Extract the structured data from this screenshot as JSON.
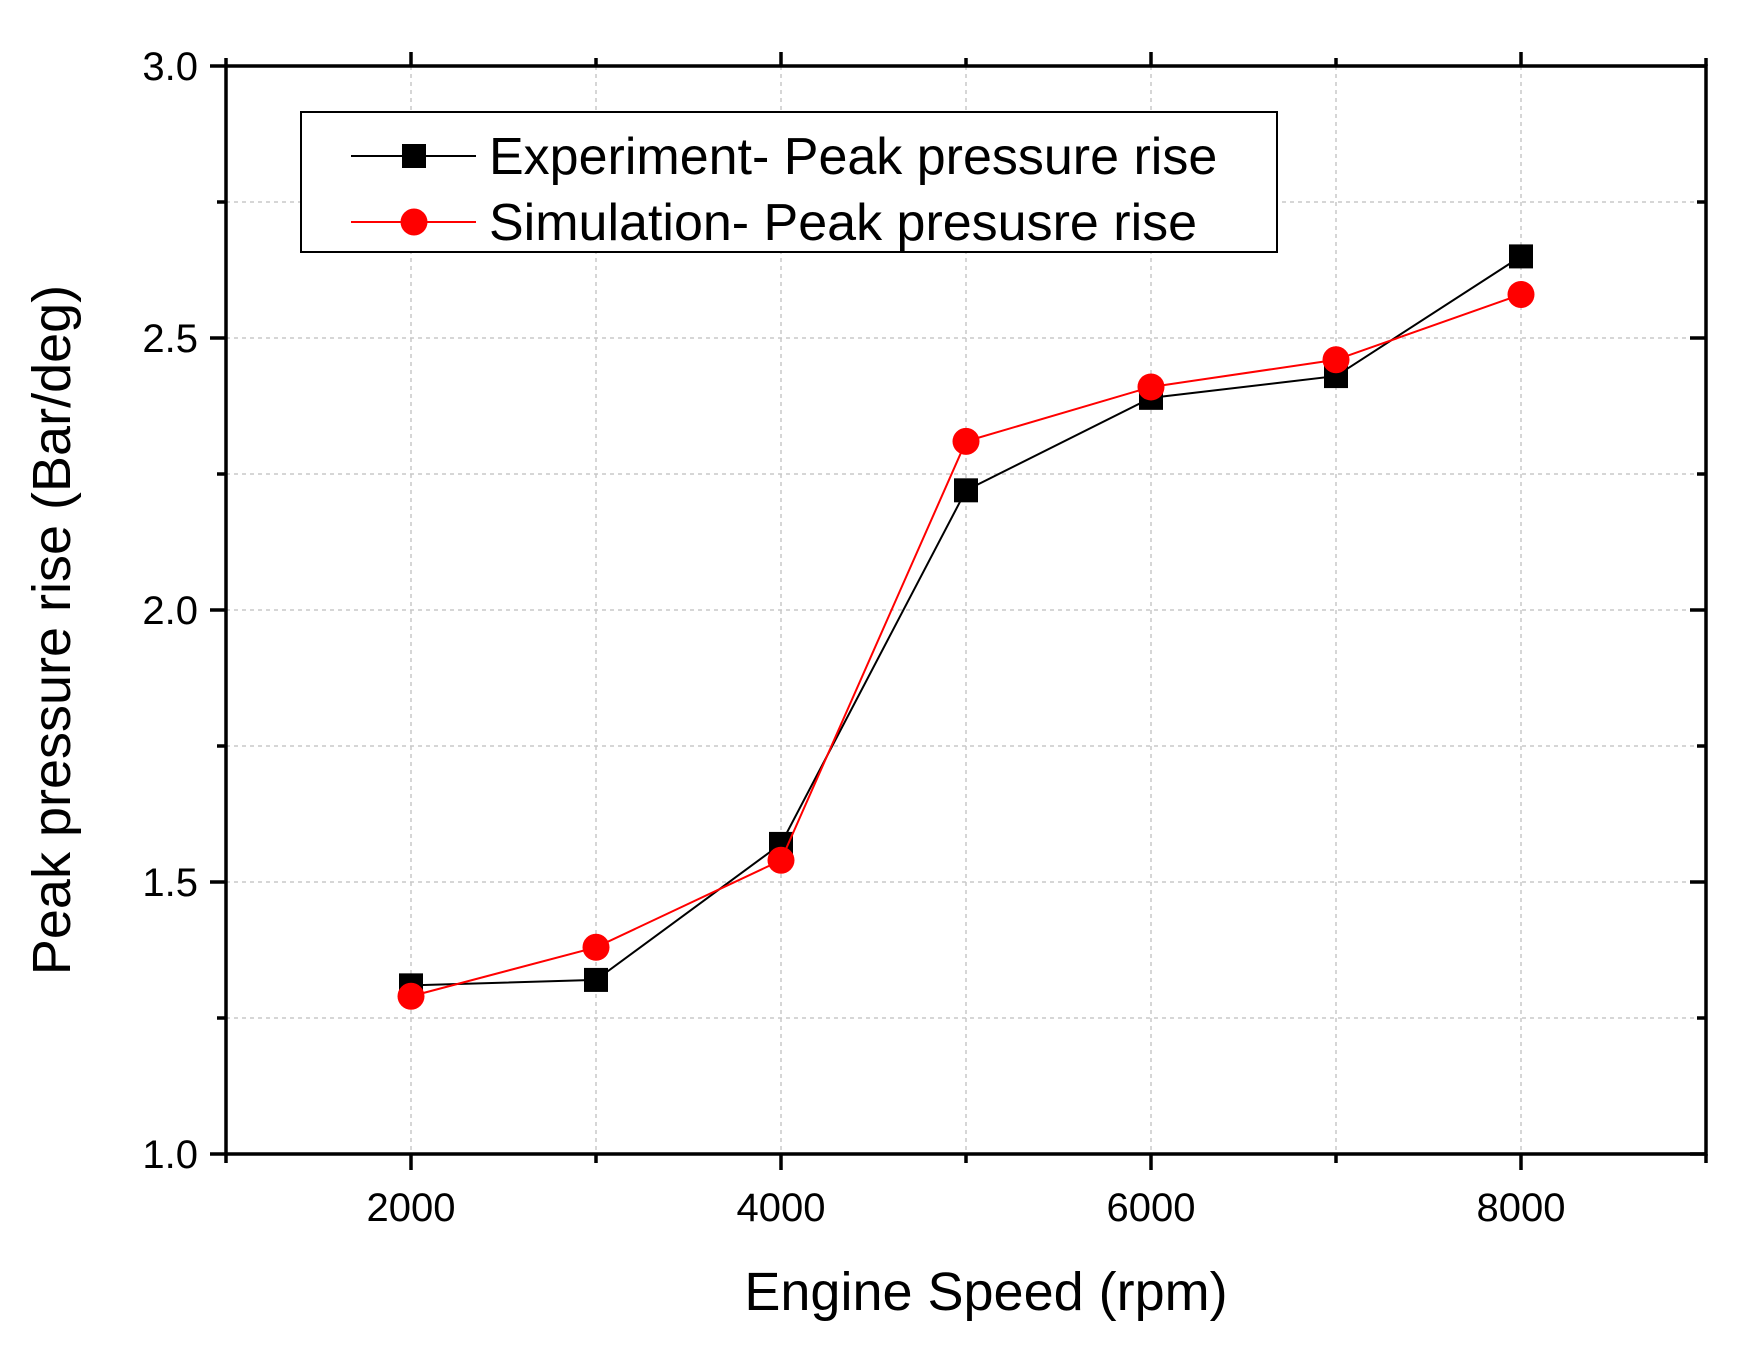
{
  "chart_data": {
    "type": "line",
    "title": "",
    "xlabel": "Engine Speed (rpm)",
    "ylabel": "Peak pressure rise (Bar/deg)",
    "xlim": [
      1000,
      9000
    ],
    "ylim": [
      1.0,
      3.0
    ],
    "x_ticks": [
      2000,
      4000,
      6000,
      8000
    ],
    "x_minor_ticks": [
      1000,
      3000,
      5000,
      7000,
      9000
    ],
    "y_ticks": [
      1.0,
      1.5,
      2.0,
      2.5,
      3.0
    ],
    "y_tick_labels": [
      "1.0",
      "1.5",
      "2.0",
      "2.5",
      "3.0"
    ],
    "y_minor_ticks": [
      1.25,
      1.75,
      2.25,
      2.75
    ],
    "x_grid": [
      2000,
      3000,
      4000,
      5000,
      6000,
      7000,
      8000
    ],
    "y_grid": [
      1.25,
      1.5,
      1.75,
      2.0,
      2.25,
      2.5,
      2.75
    ],
    "grid": true,
    "legend_position": "top-left",
    "x": [
      2000,
      3000,
      4000,
      5000,
      6000,
      7000,
      8000
    ],
    "series": [
      {
        "name": "Experiment- Peak pressure rise",
        "marker": "square",
        "color": "#000000",
        "values": [
          1.31,
          1.32,
          1.57,
          2.22,
          2.39,
          2.43,
          2.65
        ]
      },
      {
        "name": "Simulation- Peak presusre rise",
        "marker": "circle",
        "color": "#ff0000",
        "values": [
          1.29,
          1.38,
          1.54,
          2.31,
          2.41,
          2.46,
          2.58
        ]
      }
    ]
  }
}
